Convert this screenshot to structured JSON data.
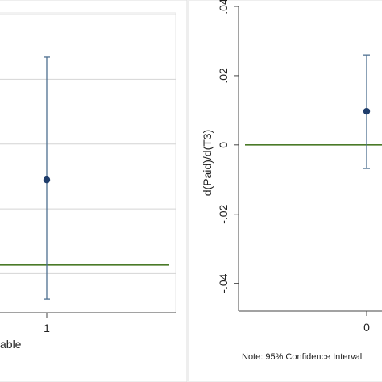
{
  "colors": {
    "background": "#ffffff",
    "frame_bg": "#ffffff",
    "panel_border": "#d9d9d9",
    "axis": "#444444",
    "grid": "#d4d4d4",
    "reference_line": "#4a7a28",
    "ci_bar": "#4d6f90",
    "marker": "#1f3d6b"
  },
  "chart_data": [
    {
      "type": "scatter",
      "title": "",
      "xlabel": "able",
      "ylabel": "",
      "xticks": [
        "1"
      ],
      "yticks": [],
      "grid": true,
      "series": [
        {
          "x": 1,
          "y": 0.011,
          "ci_low": -0.024,
          "ci_high": 0.047
        }
      ],
      "reference_line": {
        "y": -0.014
      }
    },
    {
      "type": "scatter",
      "title": "",
      "xlabel": "",
      "ylabel": "d(Paid)/d(T3)",
      "xticks": [
        "0"
      ],
      "yticks": [
        "-.04",
        "-.02",
        "0",
        ".02",
        ".04"
      ],
      "ylim": [
        -0.048,
        0.04
      ],
      "grid": false,
      "series": [
        {
          "x": 0,
          "y": 0.0097,
          "ci_low": -0.0068,
          "ci_high": 0.026
        }
      ],
      "reference_line": {
        "y": 0
      },
      "note": "Note: 95% Confidence Interval"
    }
  ]
}
